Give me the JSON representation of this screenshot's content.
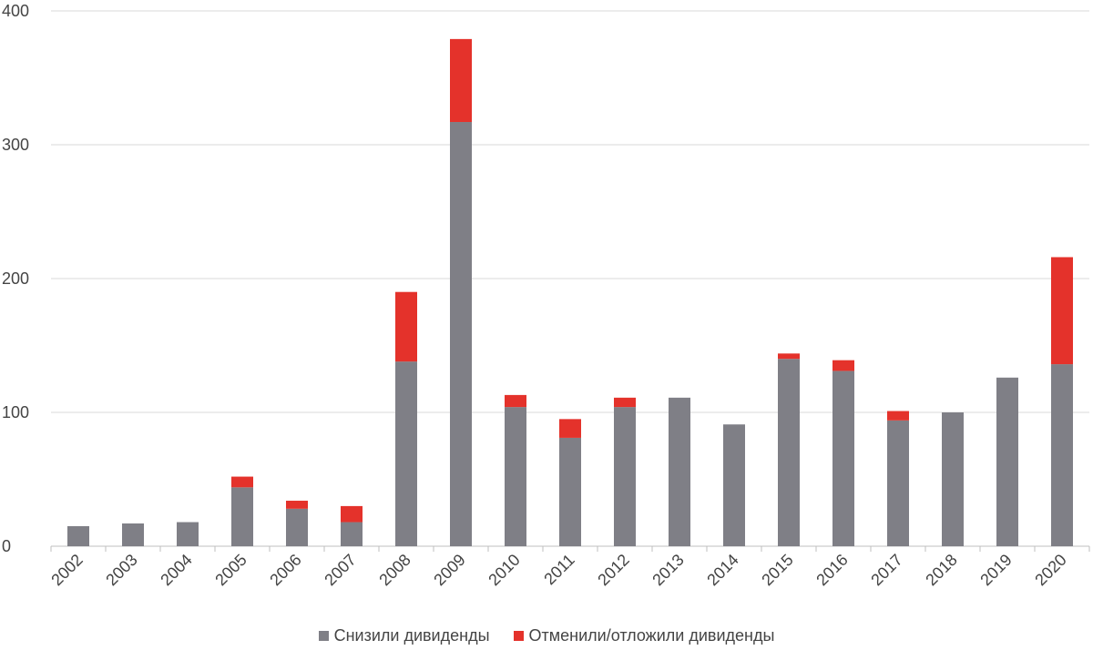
{
  "chart_data": {
    "type": "bar",
    "stacked": true,
    "title": "",
    "xlabel": "",
    "ylabel": "",
    "ylim": [
      0,
      400
    ],
    "yticks": [
      0,
      100,
      200,
      300,
      400
    ],
    "yticks_labels": [
      "0",
      "100",
      "200",
      "300",
      "400"
    ],
    "grid": "horizontal",
    "legend_position": "bottom",
    "categories": [
      "2002",
      "2003",
      "2004",
      "2005",
      "2006",
      "2007",
      "2008",
      "2009",
      "2010",
      "2011",
      "2012",
      "2013",
      "2014",
      "2015",
      "2016",
      "2017",
      "2018",
      "2019",
      "2020"
    ],
    "series": [
      {
        "name": "Снизили дивиденды",
        "color": "#7f7f86",
        "values": [
          15,
          17,
          18,
          44,
          28,
          18,
          138,
          317,
          104,
          81,
          104,
          111,
          91,
          140,
          131,
          94,
          100,
          126,
          136
        ]
      },
      {
        "name": "Отменили/отложили дивиденды",
        "color": "#e4322b",
        "values": [
          0,
          0,
          0,
          8,
          6,
          12,
          52,
          62,
          9,
          14,
          7,
          0,
          0,
          4,
          8,
          7,
          0,
          0,
          80
        ]
      }
    ]
  }
}
